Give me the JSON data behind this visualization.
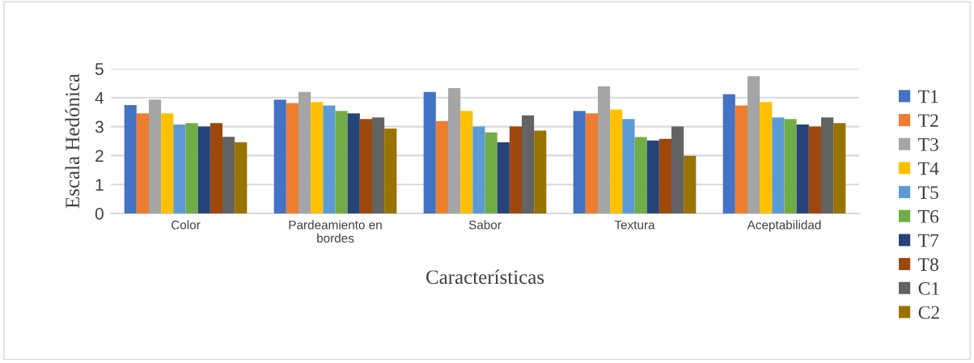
{
  "chart_data": {
    "type": "bar",
    "xlabel": "Características",
    "ylabel": "Escala Hedónica",
    "categories": [
      "Color",
      "Pardeamiento en\nbordes",
      "Sabor",
      "Textura",
      "Aceptabilidad"
    ],
    "series": [
      {
        "name": "T1",
        "color": "#4472c4",
        "values": [
          3.74,
          3.93,
          4.2,
          3.54,
          4.12
        ]
      },
      {
        "name": "T2",
        "color": "#ed7d31",
        "values": [
          3.46,
          3.81,
          3.19,
          3.46,
          3.73
        ]
      },
      {
        "name": "T3",
        "color": "#a5a5a5",
        "values": [
          3.93,
          4.2,
          4.33,
          4.39,
          4.74
        ]
      },
      {
        "name": "T4",
        "color": "#ffc000",
        "values": [
          3.46,
          3.85,
          3.54,
          3.59,
          3.85
        ]
      },
      {
        "name": "T5",
        "color": "#5b9bd5",
        "values": [
          3.07,
          3.73,
          3.0,
          3.26,
          3.32
        ]
      },
      {
        "name": "T6",
        "color": "#70ad47",
        "values": [
          3.12,
          3.54,
          2.8,
          2.64,
          3.26
        ]
      },
      {
        "name": "T7",
        "color": "#264478",
        "values": [
          3.0,
          3.46,
          2.46,
          2.52,
          3.07
        ]
      },
      {
        "name": "T8",
        "color": "#9e480e",
        "values": [
          3.12,
          3.26,
          3.0,
          2.58,
          3.0
        ]
      },
      {
        "name": "C1",
        "color": "#636363",
        "values": [
          2.65,
          3.32,
          3.39,
          3.0,
          3.32
        ]
      },
      {
        "name": "C2",
        "color": "#997300",
        "values": [
          2.46,
          2.93,
          2.86,
          1.99,
          3.12
        ]
      }
    ],
    "ylim": [
      0,
      5
    ],
    "yticks": [
      0,
      1,
      2,
      3,
      4,
      5
    ],
    "grid": "y",
    "legend": "right"
  }
}
